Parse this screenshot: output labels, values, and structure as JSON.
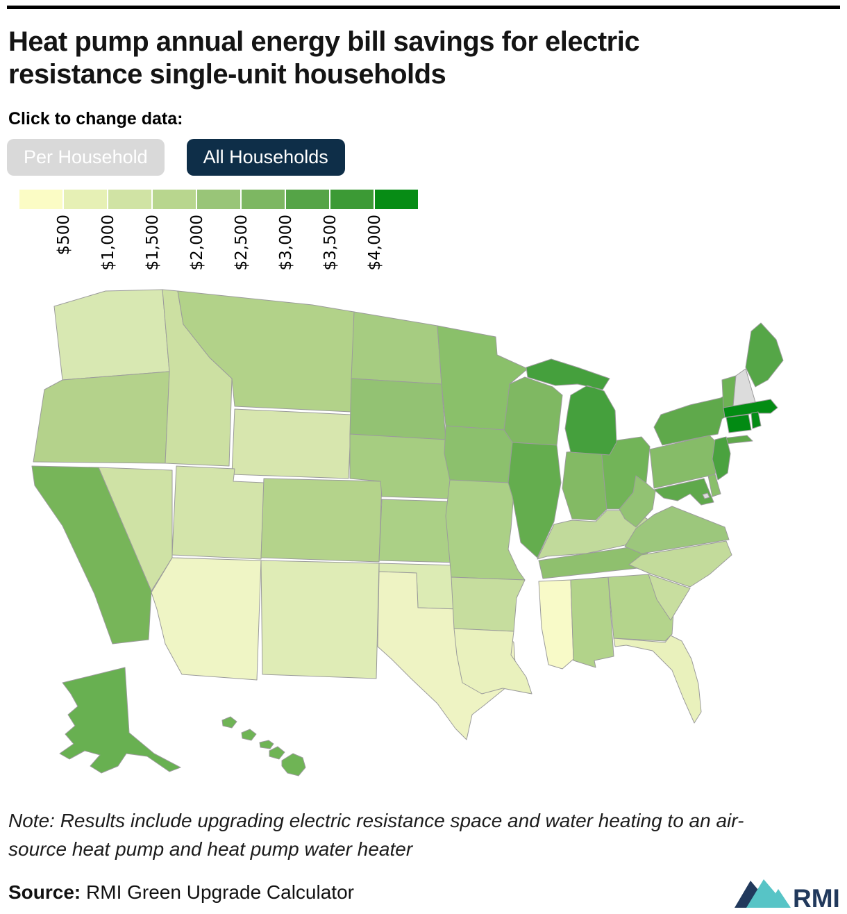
{
  "header": {
    "title_line1": "Heat pump annual energy bill savings for electric",
    "title_line2": "resistance single-unit households",
    "click_label": "Click to change data:"
  },
  "toggle": {
    "options": [
      {
        "label": "Per Household",
        "active": false
      },
      {
        "label": "All Households",
        "active": true
      }
    ],
    "active_bg": "#0e2e48",
    "inactive_bg": "#d9d9d9"
  },
  "legend": {
    "colors": [
      "#fbfcc5",
      "#e6f0b5",
      "#d0e3a4",
      "#b8d68e",
      "#99c578",
      "#7db762",
      "#55a447",
      "#3c9a35",
      "#078c15"
    ],
    "ticks": [
      "$500",
      "$1,000",
      "$1,500",
      "$2,000",
      "$2,500",
      "$3,000",
      "$3,500",
      "$4,000"
    ],
    "no_data_color": "#dcdcdc"
  },
  "chart_data": {
    "type": "choropleth-map",
    "region": "United States",
    "title": "Heat pump annual energy bill savings for electric resistance single-unit households",
    "unit": "USD per year",
    "scale_ticks": [
      "$500",
      "$1,000",
      "$1,500",
      "$2,000",
      "$2,500",
      "$3,000",
      "$3,500",
      "$4,000"
    ],
    "no_data_color": "#dcdcdc",
    "states": [
      {
        "id": "WA",
        "name": "Washington",
        "fill": "#d8e8b2",
        "range": "$1,000–$1,500"
      },
      {
        "id": "OR",
        "name": "Oregon",
        "fill": "#b4d28b",
        "range": "$1,500–$2,000"
      },
      {
        "id": "CA",
        "name": "California",
        "fill": "#77b559",
        "range": "$2,500–$3,000"
      },
      {
        "id": "NV",
        "name": "Nevada",
        "fill": "#cfe2a5",
        "range": "$1,000–$1,500"
      },
      {
        "id": "ID",
        "name": "Idaho",
        "fill": "#cce0a2",
        "range": "$1,000–$1,500"
      },
      {
        "id": "MT",
        "name": "Montana",
        "fill": "#b2d289",
        "range": "$1,500–$2,000"
      },
      {
        "id": "WY",
        "name": "Wyoming",
        "fill": "#d7e6ae",
        "range": "$1,000–$1,500"
      },
      {
        "id": "UT",
        "name": "Utah",
        "fill": "#d3e4aa",
        "range": "$1,000–$1,500"
      },
      {
        "id": "CO",
        "name": "Colorado",
        "fill": "#b4d38b",
        "range": "$1,500–$2,000"
      },
      {
        "id": "AZ",
        "name": "Arizona",
        "fill": "#eff5c5",
        "range": "$500–$1,000"
      },
      {
        "id": "NM",
        "name": "New Mexico",
        "fill": "#dfecb6",
        "range": "$500–$1,000"
      },
      {
        "id": "ND",
        "name": "North Dakota",
        "fill": "#a6cc81",
        "range": "$2,000–$2,500"
      },
      {
        "id": "SD",
        "name": "South Dakota",
        "fill": "#93c273",
        "range": "$2,000–$2,500"
      },
      {
        "id": "NE",
        "name": "Nebraska",
        "fill": "#a6cd81",
        "range": "$2,000–$2,500"
      },
      {
        "id": "KS",
        "name": "Kansas",
        "fill": "#abd086",
        "range": "$2,000–$2,500"
      },
      {
        "id": "OK",
        "name": "Oklahoma",
        "fill": "#dcebb4",
        "range": "$1,000–$1,500"
      },
      {
        "id": "TX",
        "name": "Texas",
        "fill": "#eef3c3",
        "range": "$500–$1,000"
      },
      {
        "id": "MN",
        "name": "Minnesota",
        "fill": "#8ac06a",
        "range": "$2,500–$3,000"
      },
      {
        "id": "IA",
        "name": "Iowa",
        "fill": "#8cc06d",
        "range": "$2,500–$3,000"
      },
      {
        "id": "MO",
        "name": "Missouri",
        "fill": "#abd086",
        "range": "$2,000–$2,500"
      },
      {
        "id": "AR",
        "name": "Arkansas",
        "fill": "#c6dd9e",
        "range": "$1,500–$2,000"
      },
      {
        "id": "LA",
        "name": "Louisiana",
        "fill": "#e9f1bd",
        "range": "$500–$1,000"
      },
      {
        "id": "WI",
        "name": "Wisconsin",
        "fill": "#7fb862",
        "range": "$2,500–$3,000"
      },
      {
        "id": "IL",
        "name": "Illinois",
        "fill": "#64ad4e",
        "range": "$3,000–$3,500"
      },
      {
        "id": "MI",
        "name": "Michigan",
        "fill": "#45a03d",
        "range": "$3,500–$4,000"
      },
      {
        "id": "IN",
        "name": "Indiana",
        "fill": "#83ba64",
        "range": "$2,500–$3,000"
      },
      {
        "id": "OH",
        "name": "Ohio",
        "fill": "#72b458",
        "range": "$2,500–$3,000"
      },
      {
        "id": "KY",
        "name": "Kentucky",
        "fill": "#c1da9b",
        "range": "$1,500–$2,000"
      },
      {
        "id": "TN",
        "name": "Tennessee",
        "fill": "#8fc06e",
        "range": "$2,000–$2,500"
      },
      {
        "id": "MS",
        "name": "Mississippi",
        "fill": "#f8fac8",
        "range": "<$500"
      },
      {
        "id": "AL",
        "name": "Alabama",
        "fill": "#b2d38a",
        "range": "$1,500–$2,000"
      },
      {
        "id": "GA",
        "name": "Georgia",
        "fill": "#b4d48c",
        "range": "$1,500–$2,000"
      },
      {
        "id": "FL",
        "name": "Florida",
        "fill": "#e9f1bc",
        "range": "$500–$1,000"
      },
      {
        "id": "SC",
        "name": "South Carolina",
        "fill": "#c8de9f",
        "range": "$1,500–$2,000"
      },
      {
        "id": "NC",
        "name": "North Carolina",
        "fill": "#c3db9b",
        "range": "$1,500–$2,000"
      },
      {
        "id": "VA",
        "name": "Virginia",
        "fill": "#9cc77c",
        "range": "$2,000–$2,500"
      },
      {
        "id": "WV",
        "name": "West Virginia",
        "fill": "#92c273",
        "range": "$2,000–$2,500"
      },
      {
        "id": "PA",
        "name": "Pennsylvania",
        "fill": "#86bc68",
        "range": "$2,500–$3,000"
      },
      {
        "id": "NY",
        "name": "New York",
        "fill": "#5fa94b",
        "range": "$3,000–$3,500"
      },
      {
        "id": "NJ",
        "name": "New Jersey",
        "fill": "#4aa23f",
        "range": "$3,000–$3,500"
      },
      {
        "id": "DE",
        "name": "Delaware",
        "fill": "#8abf6b",
        "range": "$2,500–$3,000"
      },
      {
        "id": "MD",
        "name": "Maryland",
        "fill": "#5fa94b",
        "range": "$3,000–$3,500"
      },
      {
        "id": "DC",
        "name": "District of Columbia",
        "fill": "#dcdcdc",
        "range": "no data"
      },
      {
        "id": "VT",
        "name": "Vermont",
        "fill": "#6db254",
        "range": "$2,500–$3,000"
      },
      {
        "id": "NH",
        "name": "New Hampshire",
        "fill": "#dcdcdc",
        "range": "no data"
      },
      {
        "id": "ME",
        "name": "Maine",
        "fill": "#55a647",
        "range": "$3,000–$3,500"
      },
      {
        "id": "MA",
        "name": "Massachusetts",
        "fill": "#038c13",
        "range": ">$4,000"
      },
      {
        "id": "CT",
        "name": "Connecticut",
        "fill": "#028a13",
        "range": ">$4,000"
      },
      {
        "id": "RI",
        "name": "Rhode Island",
        "fill": "#048d15",
        "range": ">$4,000"
      },
      {
        "id": "AK",
        "name": "Alaska",
        "fill": "#68b051",
        "range": "$3,000–$3,500"
      },
      {
        "id": "HI",
        "name": "Hawaii",
        "fill": "#6fb455",
        "range": "$2,500–$3,000"
      }
    ]
  },
  "footer": {
    "note_line1": "Note: Results include upgrading electric resistance space and water heating to an air-",
    "note_line2": "source heat pump and heat pump water heater",
    "source_label": "Source:",
    "source_text": " RMI Green Upgrade Calculator",
    "logo_text": "RMI",
    "logo_navy": "#21395c",
    "logo_teal": "#57c4c6"
  }
}
